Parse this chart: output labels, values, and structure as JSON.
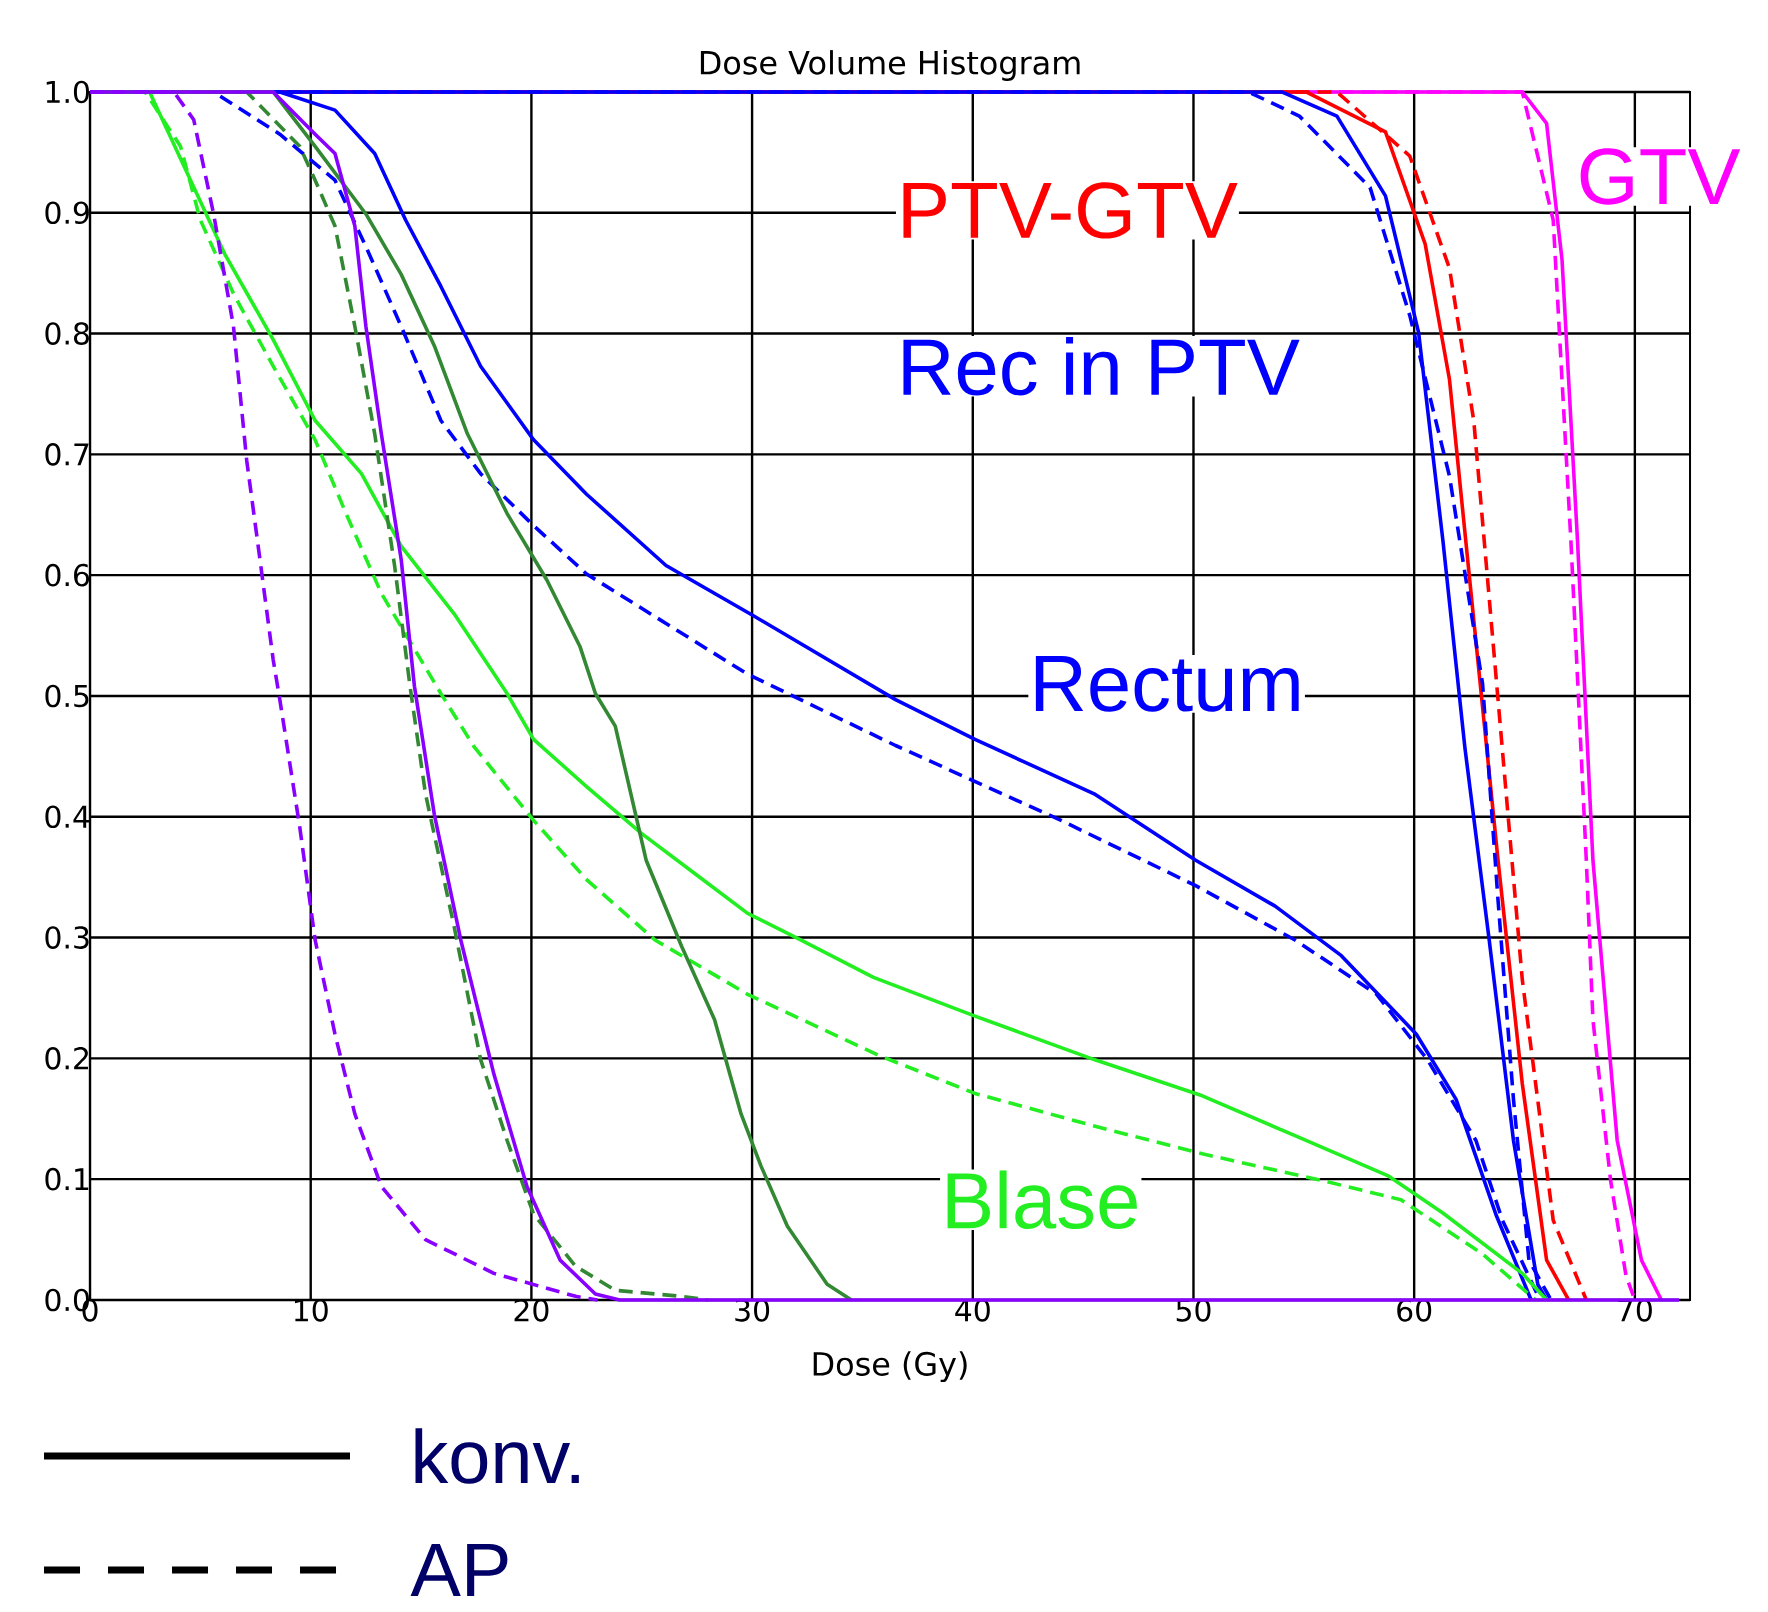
{
  "chart_data": {
    "type": "line",
    "title": "Dose Volume Histogram",
    "xlabel": "Dose (Gy)",
    "xlim": [
      0,
      72.5
    ],
    "ylim": [
      0,
      1.0
    ],
    "xticks": [
      0,
      10,
      20,
      30,
      40,
      50,
      60,
      70
    ],
    "yticks": [
      {
        "value": 0,
        "label": "0.0"
      },
      {
        "value": 0.1,
        "label": "0.1"
      },
      {
        "value": 0.2,
        "label": "0.2"
      },
      {
        "value": 0.3,
        "label": "0.3"
      },
      {
        "value": 0.4,
        "label": "0.4"
      },
      {
        "value": 0.5,
        "label": "0.5"
      },
      {
        "value": 0.6,
        "label": "0.6"
      },
      {
        "value": 0.7,
        "label": "0.7"
      },
      {
        "value": 0.8,
        "label": "0.8"
      },
      {
        "value": 0.9,
        "label": "0.9"
      },
      {
        "value": 1.0,
        "label": "1.0"
      }
    ],
    "grid": true,
    "marker": "none",
    "annotations": [
      "konv.",
      "AP"
    ],
    "series": [
      {
        "name": "GTV",
        "color": "#ff00ff",
        "line_style": "solid",
        "x": [
          0,
          64.9,
          66,
          66.7,
          67.4,
          68.1,
          69.2,
          70.3,
          71.2
        ],
        "values": [
          1,
          1,
          0.974,
          0.861,
          0.629,
          0.364,
          0.132,
          0.033,
          0
        ]
      },
      {
        "color": "#ff00ff",
        "line_style": "dashed",
        "x": [
          0,
          64.9,
          66.3,
          67.1,
          67.8,
          68.1,
          68.9,
          69.6,
          70
        ],
        "values": [
          1,
          1,
          0.894,
          0.629,
          0.364,
          0.232,
          0.099,
          0.02,
          0
        ]
      },
      {
        "name": "PTV-GTV",
        "color": "#ff0000",
        "line_style": "solid",
        "x": [
          0,
          55.1,
          58.7,
          60.5,
          61.6,
          62.7,
          63.8,
          64.9,
          66,
          67
        ],
        "values": [
          1,
          1,
          0.967,
          0.874,
          0.762,
          0.563,
          0.364,
          0.179,
          0.033,
          0
        ]
      },
      {
        "color": "#ff0000",
        "line_style": "dashed",
        "x": [
          0,
          56.5,
          59.8,
          61.6,
          62.7,
          63.8,
          64.9,
          66.3,
          67.8
        ],
        "values": [
          1,
          1,
          0.947,
          0.854,
          0.728,
          0.497,
          0.265,
          0.066,
          0
        ]
      },
      {
        "name": "Rec in PTV",
        "color": "#0000ff",
        "line_style": "solid",
        "x": [
          0,
          54,
          56.5,
          58.7,
          60.2,
          61.3,
          62.3,
          63.4,
          64.5,
          65.6,
          66
        ],
        "values": [
          1,
          1,
          0.98,
          0.914,
          0.801,
          0.629,
          0.457,
          0.298,
          0.132,
          0.013,
          0
        ]
      },
      {
        "color": "#0000ff",
        "line_style": "dashed",
        "x": [
          0,
          52.5,
          54.8,
          58,
          59.8,
          61.6,
          63.1,
          63.8,
          64.5,
          65.2,
          66.2
        ],
        "values": [
          1,
          1,
          0.98,
          0.921,
          0.815,
          0.682,
          0.51,
          0.331,
          0.166,
          0.033,
          0
        ]
      },
      {
        "name": "Rectum",
        "color": "#0000ff",
        "line_style": "solid",
        "x": [
          0,
          8.6,
          11.1,
          12.9,
          14.3,
          15.9,
          17.7,
          20.1,
          22.5,
          26.1,
          30.1,
          36.5,
          40.1,
          45.5,
          50.1,
          53.7,
          56.7,
          60.1,
          61.9,
          63.7,
          65.3
        ],
        "values": [
          1,
          1,
          0.985,
          0.949,
          0.894,
          0.839,
          0.773,
          0.712,
          0.667,
          0.608,
          0.566,
          0.497,
          0.464,
          0.419,
          0.364,
          0.326,
          0.285,
          0.22,
          0.166,
          0.071,
          0
        ]
      },
      {
        "color": "#0000ff",
        "line_style": "dashed",
        "x": [
          0,
          5.6,
          8.6,
          11.1,
          12.5,
          14.1,
          15.9,
          17.7,
          20.1,
          22.5,
          26.1,
          29.8,
          36.5,
          44,
          50.1,
          54.6,
          58.3,
          60.6,
          62.8,
          64,
          65.7
        ],
        "values": [
          1,
          1,
          0.965,
          0.927,
          0.872,
          0.806,
          0.728,
          0.684,
          0.641,
          0.601,
          0.56,
          0.518,
          0.459,
          0.397,
          0.343,
          0.298,
          0.253,
          0.199,
          0.132,
          0.066,
          0
        ]
      },
      {
        "name": "Blase",
        "color": "#22ee22",
        "line_style": "solid",
        "x": [
          0,
          2.7,
          6.1,
          8.3,
          10.2,
          12.3,
          14.1,
          16.5,
          18.9,
          20.1,
          22.5,
          25,
          27.4,
          29.8,
          32.2,
          35.5,
          40.1,
          45.5,
          50.4,
          54.6,
          58.8,
          61.3,
          64.9,
          66
        ],
        "values": [
          1,
          1,
          0.866,
          0.795,
          0.728,
          0.684,
          0.624,
          0.568,
          0.502,
          0.464,
          0.425,
          0.386,
          0.353,
          0.32,
          0.298,
          0.267,
          0.235,
          0.199,
          0.169,
          0.136,
          0.103,
          0.072,
          0.022,
          0
        ]
      },
      {
        "color": "#22ee22",
        "line_style": "dashed",
        "x": [
          0,
          2.5,
          4.1,
          5,
          6.5,
          8.3,
          10.2,
          11.6,
          13.2,
          15.9,
          17.4,
          20.1,
          22.5,
          25.6,
          29.8,
          35.8,
          40.1,
          45.5,
          50.4,
          55.8,
          59.4,
          63.1,
          65.5
        ],
        "values": [
          1,
          1,
          0.955,
          0.894,
          0.833,
          0.773,
          0.712,
          0.651,
          0.585,
          0.502,
          0.458,
          0.397,
          0.348,
          0.298,
          0.253,
          0.202,
          0.171,
          0.144,
          0.121,
          0.099,
          0.083,
          0.038,
          0
        ]
      },
      {
        "color": "#338833",
        "line_style": "solid",
        "x": [
          0,
          8.3,
          10.2,
          12.5,
          14.1,
          15.6,
          17.1,
          18.9,
          20.7,
          22.2,
          22.9,
          23.8,
          25.2,
          26.8,
          28.3,
          29.5,
          30.4,
          31.6,
          33.4,
          34.5
        ],
        "values": [
          1,
          1,
          0.955,
          0.899,
          0.849,
          0.79,
          0.717,
          0.651,
          0.596,
          0.541,
          0.502,
          0.475,
          0.364,
          0.293,
          0.232,
          0.154,
          0.111,
          0.061,
          0.013,
          0
        ]
      },
      {
        "color": "#338833",
        "line_style": "dashed",
        "x": [
          0,
          7.1,
          9.5,
          10.2,
          11.1,
          12,
          12.9,
          13.8,
          14.5,
          15.2,
          16.5,
          17.7,
          18.9,
          20.1,
          22,
          23.8,
          26.8,
          28
        ],
        "values": [
          1,
          1,
          0.955,
          0.927,
          0.889,
          0.806,
          0.717,
          0.608,
          0.508,
          0.419,
          0.309,
          0.199,
          0.132,
          0.071,
          0.028,
          0.008,
          0.003,
          0
        ]
      },
      {
        "color": "#8800ff",
        "line_style": "dashed",
        "x": [
          0,
          3.8,
          4.7,
          5.6,
          6.5,
          7.1,
          7.7,
          8.3,
          8.6,
          9.5,
          10.2,
          11.1,
          12,
          13.2,
          15.2,
          18.3,
          22,
          23
        ],
        "values": [
          1,
          1,
          0.977,
          0.899,
          0.806,
          0.695,
          0.613,
          0.53,
          0.497,
          0.392,
          0.298,
          0.22,
          0.154,
          0.094,
          0.05,
          0.022,
          0.003,
          0
        ]
      },
      {
        "color": "#8800ff",
        "line_style": "solid",
        "x": [
          0,
          8.3,
          10.2,
          11.1,
          12,
          12.5,
          13.2,
          14.1,
          14.7,
          15.6,
          16.8,
          18.3,
          19.8,
          21.3,
          22.9,
          24,
          72
        ],
        "values": [
          1,
          1,
          0.965,
          0.949,
          0.889,
          0.806,
          0.717,
          0.613,
          0.508,
          0.402,
          0.298,
          0.187,
          0.094,
          0.033,
          0.005,
          0,
          0
        ]
      }
    ]
  }
}
